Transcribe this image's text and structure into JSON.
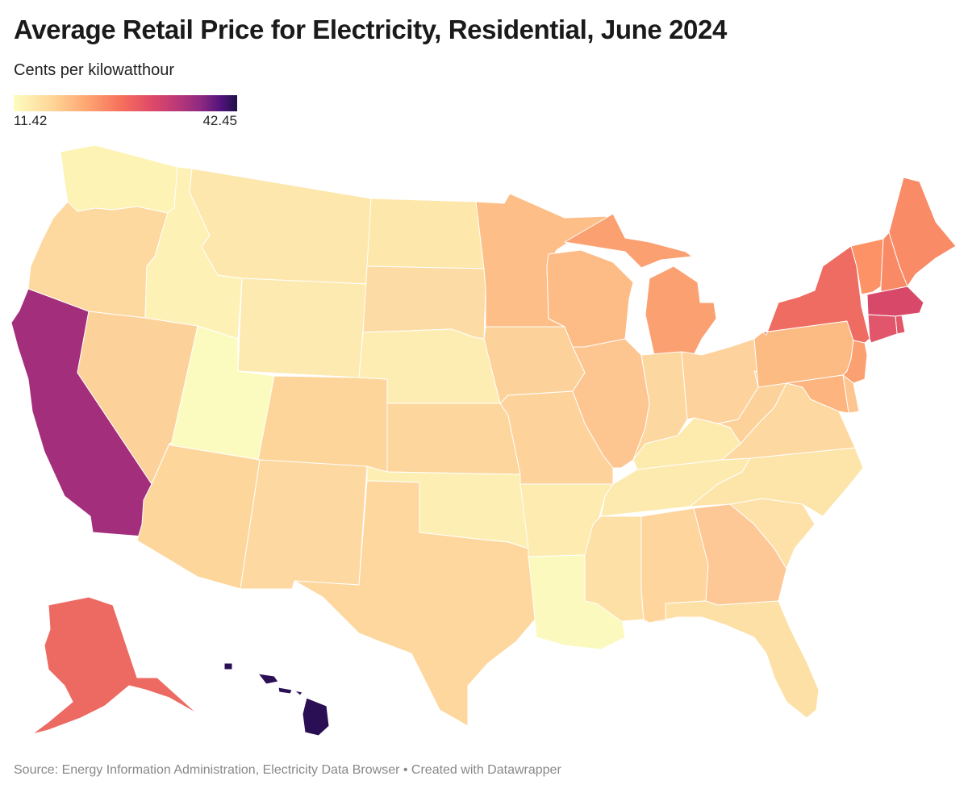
{
  "header": {
    "title": "Average Retail Price for Electricity, Residential, June 2024",
    "subtitle": "Cents per kilowatthour"
  },
  "legend": {
    "min_label": "11.42",
    "max_label": "42.45",
    "min_value": 11.42,
    "max_value": 42.45
  },
  "footer": {
    "source": "Source: Energy Information Administration, Electricity Data Browser • Created with Datawrapper"
  },
  "chart_data": {
    "type": "choropleth",
    "title": "Average Retail Price for Electricity, Residential, June 2024",
    "unit": "Cents per kilowatthour",
    "scale_min": 11.42,
    "scale_max": 42.45,
    "states": [
      {
        "abbr": "WA",
        "value": 12.8,
        "color": "#fdf3b5"
      },
      {
        "abbr": "OR",
        "value": 14.6,
        "color": "#fdd9a0"
      },
      {
        "abbr": "CA",
        "value": 32.8,
        "color": "#a32e7b"
      },
      {
        "abbr": "NV",
        "value": 15.6,
        "color": "#fdd29a"
      },
      {
        "abbr": "ID",
        "value": 11.9,
        "color": "#fdf1b6"
      },
      {
        "abbr": "MT",
        "value": 13.2,
        "color": "#fde7ac"
      },
      {
        "abbr": "WY",
        "value": 12.6,
        "color": "#fdeab1"
      },
      {
        "abbr": "UT",
        "value": 11.4,
        "color": "#fbfbc0"
      },
      {
        "abbr": "AZ",
        "value": 15.8,
        "color": "#fdd69c"
      },
      {
        "abbr": "CO",
        "value": 15.9,
        "color": "#fdd59b"
      },
      {
        "abbr": "NM",
        "value": 15.3,
        "color": "#fdd8a0"
      },
      {
        "abbr": "ND",
        "value": 12.8,
        "color": "#fde7aa"
      },
      {
        "abbr": "SD",
        "value": 14.2,
        "color": "#fddba4"
      },
      {
        "abbr": "NE",
        "value": 12.5,
        "color": "#fdedb2"
      },
      {
        "abbr": "KS",
        "value": 15.4,
        "color": "#fdd69d"
      },
      {
        "abbr": "OK",
        "value": 12.7,
        "color": "#fdefb3"
      },
      {
        "abbr": "TX",
        "value": 15.1,
        "color": "#fdd79e"
      },
      {
        "abbr": "MN",
        "value": 17.1,
        "color": "#fdbf87"
      },
      {
        "abbr": "IA",
        "value": 15.5,
        "color": "#fdd29a"
      },
      {
        "abbr": "MO",
        "value": 15.6,
        "color": "#fdd29b"
      },
      {
        "abbr": "AR",
        "value": 12.6,
        "color": "#fdebaf"
      },
      {
        "abbr": "LA",
        "value": 11.6,
        "color": "#fbf9be"
      },
      {
        "abbr": "WI",
        "value": 17.8,
        "color": "#fdbb85"
      },
      {
        "abbr": "IL",
        "value": 16.4,
        "color": "#fdc590"
      },
      {
        "abbr": "MI",
        "value": 19.8,
        "color": "#fba071"
      },
      {
        "abbr": "IN",
        "value": 15.6,
        "color": "#fdd7a0"
      },
      {
        "abbr": "OH",
        "value": 16.0,
        "color": "#fdd29c"
      },
      {
        "abbr": "KY",
        "value": 13.3,
        "color": "#fdeaad"
      },
      {
        "abbr": "TN",
        "value": 12.9,
        "color": "#fdeaae"
      },
      {
        "abbr": "MS",
        "value": 14.2,
        "color": "#fde0a5"
      },
      {
        "abbr": "AL",
        "value": 15.6,
        "color": "#fdd59d"
      },
      {
        "abbr": "GA",
        "value": 15.9,
        "color": "#fdc895"
      },
      {
        "abbr": "FL",
        "value": 14.9,
        "color": "#fde0a6"
      },
      {
        "abbr": "SC",
        "value": 14.8,
        "color": "#fde1a8"
      },
      {
        "abbr": "NC",
        "value": 14.1,
        "color": "#fde4a9"
      },
      {
        "abbr": "VA",
        "value": 15.5,
        "color": "#fdd8a0"
      },
      {
        "abbr": "WV",
        "value": 15.9,
        "color": "#fdd29a"
      },
      {
        "abbr": "PA",
        "value": 18.4,
        "color": "#fdbb84"
      },
      {
        "abbr": "NY",
        "value": 25.6,
        "color": "#ee6c61"
      },
      {
        "abbr": "VT",
        "value": 21.3,
        "color": "#fc9266"
      },
      {
        "abbr": "NH",
        "value": 22.4,
        "color": "#f98a66"
      },
      {
        "abbr": "ME",
        "value": 22.1,
        "color": "#f98b66"
      },
      {
        "abbr": "MA",
        "value": 29.6,
        "color": "#d84969"
      },
      {
        "abbr": "RI",
        "value": 27.9,
        "color": "#e3576a"
      },
      {
        "abbr": "CT",
        "value": 27.6,
        "color": "#e1566a"
      },
      {
        "abbr": "NJ",
        "value": 20.3,
        "color": "#fba070"
      },
      {
        "abbr": "DE",
        "value": 16.6,
        "color": "#fdc590"
      },
      {
        "abbr": "MD",
        "value": 18.0,
        "color": "#fdb47f"
      },
      {
        "abbr": "AK",
        "value": 25.4,
        "color": "#ec6a62"
      },
      {
        "abbr": "HI",
        "value": 42.45,
        "color": "#2b0f54"
      }
    ]
  }
}
